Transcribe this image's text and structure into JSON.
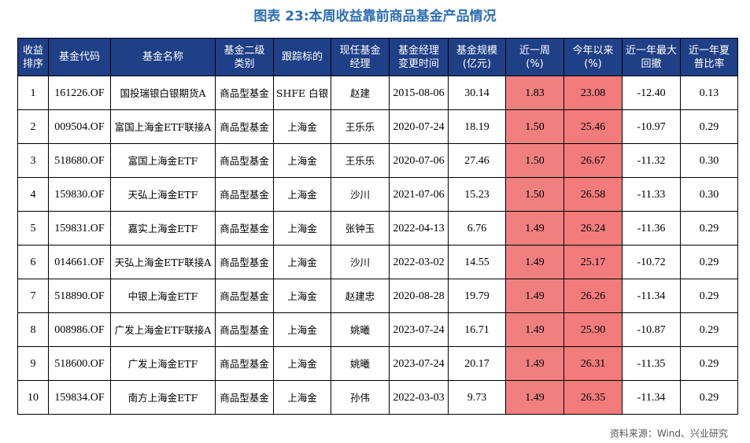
{
  "title": "图表 23:本周收益靠前商品基金产品情况",
  "headers": [
    "收益排序",
    "基金代码",
    "基金名称",
    "基金二级类别",
    "跟踪标的",
    "现任基金经理",
    "基金经理变更时间",
    "基金规模(亿元)",
    "近一周(%)",
    "今年以来(%)",
    "近一年最大回撤(%)",
    "近一年夏普比率"
  ],
  "header_lines": [
    [
      "收益",
      "排序"
    ],
    [
      "基金代码"
    ],
    [
      "基金名称"
    ],
    [
      "基金二级",
      "类别"
    ],
    [
      "跟踪标的"
    ],
    [
      "现任基金",
      "经理"
    ],
    [
      "基金经理",
      "变更时间"
    ],
    [
      "基金规模",
      "(亿元)"
    ],
    [
      "近一周",
      "(%)"
    ],
    [
      "今年以来",
      "(%)"
    ],
    [
      "近一年最大",
      "回撤"
    ],
    [
      "近一年夏",
      "普比率"
    ]
  ],
  "rows": [
    {
      "rank": "1",
      "code": "161226.OF",
      "name": "国投瑞银白银期货A",
      "type": "商品型基金",
      "index": "SHFE 白银",
      "manager": "赵建",
      "change_date": "2015-08-06",
      "size": "30.14",
      "week": "1.83",
      "ytd": "23.08",
      "drawdown": "-12.40",
      "sharpe": "0.13"
    },
    {
      "rank": "2",
      "code": "009504.OF",
      "name": "富国上海金ETF联接A",
      "type": "商品型基金",
      "index": "上海金",
      "manager": "王乐乐",
      "change_date": "2020-07-24",
      "size": "18.19",
      "week": "1.50",
      "ytd": "25.46",
      "drawdown": "-10.97",
      "sharpe": "0.29"
    },
    {
      "rank": "3",
      "code": "518680.OF",
      "name": "富国上海金ETF",
      "type": "商品型基金",
      "index": "上海金",
      "manager": "王乐乐",
      "change_date": "2020-07-06",
      "size": "27.46",
      "week": "1.50",
      "ytd": "26.67",
      "drawdown": "-11.32",
      "sharpe": "0.30"
    },
    {
      "rank": "4",
      "code": "159830.OF",
      "name": "天弘上海金ETF",
      "type": "商品型基金",
      "index": "上海金",
      "manager": "沙川",
      "change_date": "2021-07-06",
      "size": "15.23",
      "week": "1.50",
      "ytd": "26.58",
      "drawdown": "-11.33",
      "sharpe": "0.30"
    },
    {
      "rank": "5",
      "code": "159831.OF",
      "name": "嘉实上海金ETF",
      "type": "商品型基金",
      "index": "上海金",
      "manager": "张钟玉",
      "change_date": "2022-04-13",
      "size": "6.76",
      "week": "1.49",
      "ytd": "26.24",
      "drawdown": "-11.36",
      "sharpe": "0.29"
    },
    {
      "rank": "6",
      "code": "014661.OF",
      "name": "天弘上海金ETF联接A",
      "type": "商品型基金",
      "index": "上海金",
      "manager": "沙川",
      "change_date": "2022-03-02",
      "size": "14.55",
      "week": "1.49",
      "ytd": "25.17",
      "drawdown": "-10.72",
      "sharpe": "0.29"
    },
    {
      "rank": "7",
      "code": "518890.OF",
      "name": "中银上海金ETF",
      "type": "商品型基金",
      "index": "上海金",
      "manager": "赵建忠",
      "change_date": "2020-08-28",
      "size": "19.79",
      "week": "1.49",
      "ytd": "26.26",
      "drawdown": "-11.34",
      "sharpe": "0.29"
    },
    {
      "rank": "8",
      "code": "008986.OF",
      "name": "广发上海金ETF联接A",
      "type": "商品型基金",
      "index": "上海金",
      "manager": "姚曦",
      "change_date": "2023-07-24",
      "size": "16.71",
      "week": "1.49",
      "ytd": "25.90",
      "drawdown": "-10.87",
      "sharpe": "0.29"
    },
    {
      "rank": "9",
      "code": "518600.OF",
      "name": "广发上海金ETF",
      "type": "商品型基金",
      "index": "上海金",
      "manager": "姚曦",
      "change_date": "2023-07-24",
      "size": "20.17",
      "week": "1.49",
      "ytd": "26.31",
      "drawdown": "-11.35",
      "sharpe": "0.29"
    },
    {
      "rank": "10",
      "code": "159834.OF",
      "name": "南方上海金ETF",
      "type": "商品型基金",
      "index": "上海金",
      "manager": "孙伟",
      "change_date": "2022-03-03",
      "size": "9.73",
      "week": "1.49",
      "ytd": "26.35",
      "drawdown": "-11.34",
      "sharpe": "0.29"
    }
  ],
  "source": "资料来源：Wind、兴业研究",
  "colors": {
    "header_bg": "#1f3f86",
    "title": "#2f6fb3",
    "highlight": "#f08080"
  }
}
